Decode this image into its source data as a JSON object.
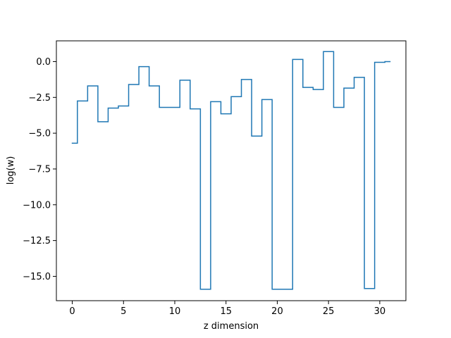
{
  "chart_data": {
    "type": "line",
    "drawstyle": "steps-mid",
    "title": "",
    "xlabel": "z dimension",
    "ylabel": "log(w)",
    "xlim": [
      -1.55,
      32.55
    ],
    "ylim": [
      -16.7,
      1.45
    ],
    "xticks": [
      0,
      5,
      10,
      15,
      20,
      25,
      30
    ],
    "xtick_labels": [
      "0",
      "5",
      "10",
      "15",
      "20",
      "25",
      "30"
    ],
    "yticks": [
      0.0,
      -2.5,
      -5.0,
      -7.5,
      -10.0,
      -12.5,
      -15.0
    ],
    "ytick_labels": [
      "0.0",
      "−2.5",
      "−5.0",
      "−7.5",
      "−10.0",
      "−12.5",
      "−15.0"
    ],
    "grid": false,
    "legend": "none",
    "series_color": "#1f77b4",
    "series": [
      {
        "x": [
          0,
          1,
          2,
          3,
          4,
          5,
          6,
          7,
          8,
          9,
          10,
          11,
          12,
          13,
          14,
          15,
          16,
          17,
          18,
          19,
          20,
          21,
          22,
          23,
          24,
          25,
          26,
          27,
          28,
          29,
          30,
          31
        ],
        "values": [
          -5.7,
          -2.75,
          -1.7,
          -4.2,
          -3.25,
          -3.1,
          -1.6,
          -0.35,
          -1.7,
          -3.2,
          -3.2,
          -1.3,
          -3.3,
          -15.9,
          -2.8,
          -3.65,
          -2.45,
          -1.25,
          -5.2,
          -2.65,
          -15.9,
          -15.9,
          0.15,
          -1.8,
          -1.95,
          0.7,
          -3.2,
          -1.85,
          -1.1,
          -15.85,
          -0.05,
          0.0
        ]
      }
    ]
  }
}
